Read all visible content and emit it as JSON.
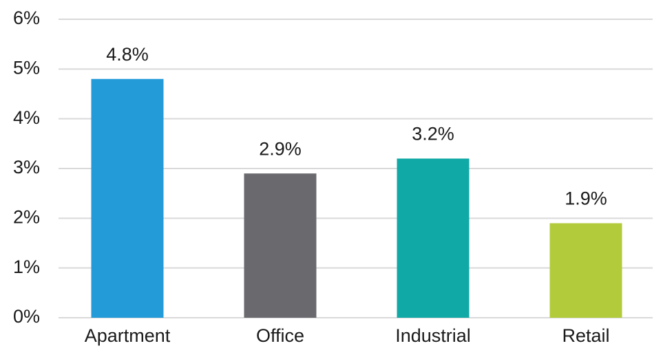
{
  "chart_data": {
    "type": "bar",
    "categories": [
      "Apartment",
      "Office",
      "Industrial",
      "Retail"
    ],
    "values": [
      4.8,
      2.9,
      3.2,
      1.9
    ],
    "value_labels": [
      "4.8%",
      "2.9%",
      "3.2%",
      "1.9%"
    ],
    "colors": [
      "#239bd9",
      "#6a696e",
      "#11a9a6",
      "#b1cb3a"
    ],
    "ylim": [
      0,
      6
    ],
    "yticks": [
      {
        "value": 0,
        "label": "0%"
      },
      {
        "value": 1,
        "label": "1%"
      },
      {
        "value": 2,
        "label": "2%"
      },
      {
        "value": 3,
        "label": "3%"
      },
      {
        "value": 4,
        "label": "4%"
      },
      {
        "value": 5,
        "label": "5%"
      },
      {
        "value": 6,
        "label": "6%"
      }
    ],
    "grid": true
  }
}
